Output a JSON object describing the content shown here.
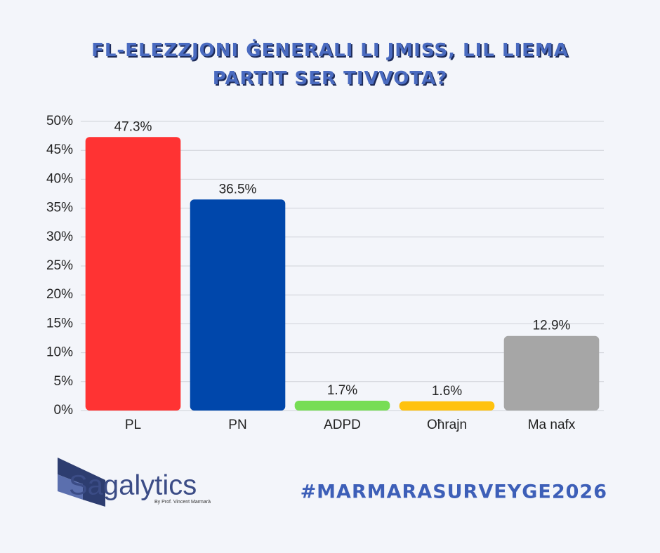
{
  "chart_data": {
    "type": "bar",
    "title": "FL-ELEZZJONI ĠENERALI LI JMISS, LIL LIEMA PARTIT SER TIVVOTA?",
    "categories": [
      "PL",
      "PN",
      "ADPD",
      "Oħrajn",
      "Ma nafx"
    ],
    "values": [
      47.3,
      36.5,
      1.7,
      1.6,
      12.9
    ],
    "value_labels": [
      "47.3%",
      "36.5%",
      "1.7%",
      "1.6%",
      "12.9%"
    ],
    "colors": [
      "#ff3333",
      "#0047ab",
      "#77dd55",
      "#ffc20e",
      "#a6a6a6"
    ],
    "ylim": [
      0,
      50
    ],
    "yticks": [
      {
        "value": 0,
        "label": "0%"
      },
      {
        "value": 5,
        "label": "5%"
      },
      {
        "value": 10,
        "label": "10%"
      },
      {
        "value": 15,
        "label": "15%"
      },
      {
        "value": 20,
        "label": "20%"
      },
      {
        "value": 25,
        "label": "25%"
      },
      {
        "value": 30,
        "label": "30%"
      },
      {
        "value": 35,
        "label": "35%"
      },
      {
        "value": 40,
        "label": "40%"
      },
      {
        "value": 45,
        "label": "45%"
      },
      {
        "value": 50,
        "label": "50%"
      }
    ],
    "grid": true
  },
  "footer": {
    "logo": "Sagalytics",
    "byline": "By Prof. Vincent Marmarà",
    "hashtag": "#MARMARASURVEYGE2026"
  }
}
